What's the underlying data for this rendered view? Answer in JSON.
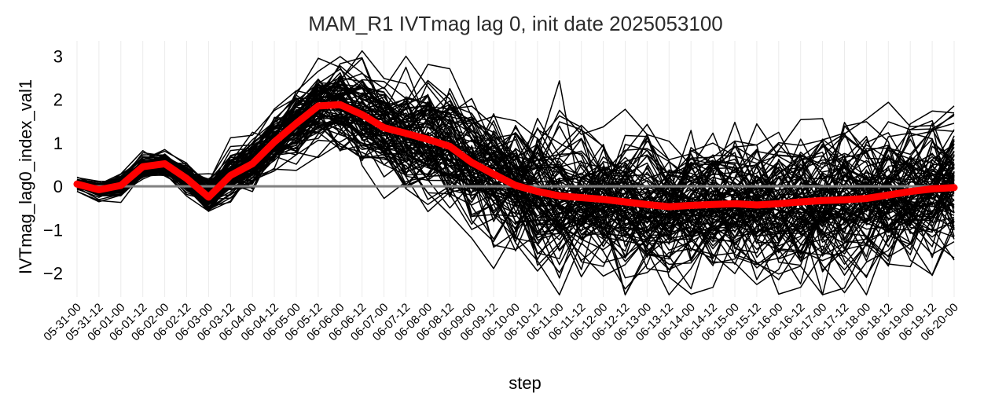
{
  "chart_data": {
    "type": "line",
    "title": "MAM_R1 IVTmag lag 0, init date 2025053100",
    "xlabel": "step",
    "ylabel": "IVTmag_lag0_index_val1",
    "ylim": [
      -2.55,
      3.35
    ],
    "yticks": [
      -2,
      -1,
      0,
      1,
      2,
      3
    ],
    "grid": "vertical",
    "categories": [
      "05-31-00",
      "05-31-12",
      "06-01-00",
      "06-01-12",
      "06-02-00",
      "06-02-12",
      "06-03-00",
      "06-03-12",
      "06-04-00",
      "06-04-12",
      "06-05-00",
      "06-05-12",
      "06-06-00",
      "06-06-12",
      "06-07-00",
      "06-07-12",
      "06-08-00",
      "06-08-12",
      "06-09-00",
      "06-09-12",
      "06-10-00",
      "06-10-12",
      "06-11-00",
      "06-11-12",
      "06-12-00",
      "06-12-12",
      "06-13-00",
      "06-13-12",
      "06-14-00",
      "06-14-12",
      "06-15-00",
      "06-15-12",
      "06-16-00",
      "06-16-12",
      "06-17-00",
      "06-17-12",
      "06-18-00",
      "06-18-12",
      "06-19-00",
      "06-19-12",
      "06-20-00"
    ],
    "ensemble_members": 100,
    "ensemble_color": "#000000",
    "mean_color": "#ff0000",
    "zero_line_color": "#808080",
    "series": [
      {
        "role": "ensemble-mean",
        "values": [
          0.05,
          -0.08,
          0.02,
          0.45,
          0.52,
          0.18,
          -0.25,
          0.25,
          0.52,
          1.02,
          1.45,
          1.85,
          1.88,
          1.65,
          1.35,
          1.22,
          1.08,
          0.92,
          0.55,
          0.28,
          0.02,
          -0.12,
          -0.22,
          -0.26,
          -0.3,
          -0.36,
          -0.42,
          -0.47,
          -0.44,
          -0.42,
          -0.4,
          -0.43,
          -0.4,
          -0.36,
          -0.33,
          -0.31,
          -0.28,
          -0.2,
          -0.12,
          -0.06,
          -0.03
        ]
      }
    ]
  }
}
